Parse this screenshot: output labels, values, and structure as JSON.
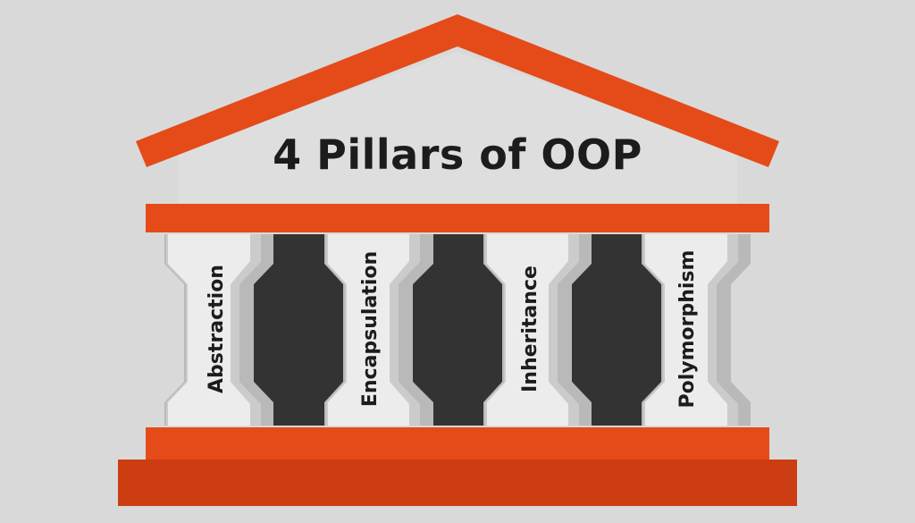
{
  "title": "4 Pillars of OOP",
  "pillars": [
    {
      "label": "Abstraction"
    },
    {
      "label": "Encapsulation"
    },
    {
      "label": "Inheritance"
    },
    {
      "label": "Polymorphism"
    }
  ],
  "colors": {
    "background": "#d9d9d9",
    "accent": "#e44b19",
    "base": "#cc3e12",
    "light_column": "#ebebeb",
    "dark_column": "#333333"
  }
}
